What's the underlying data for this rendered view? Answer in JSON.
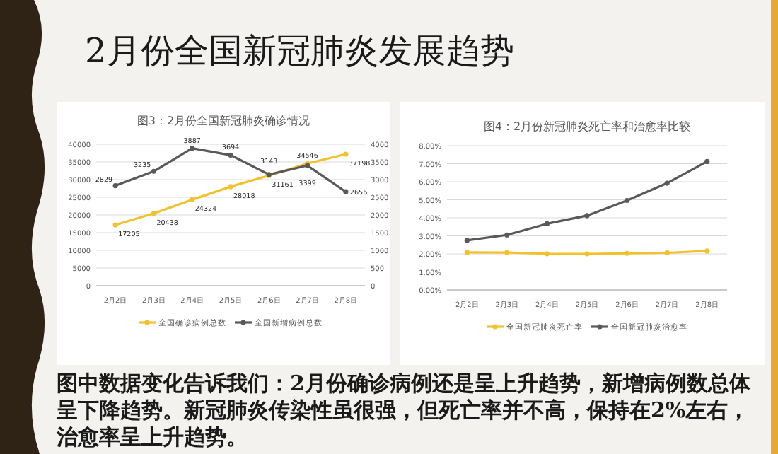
{
  "chart_data": [
    {
      "type": "other",
      "title": "2月份全国新冠肺炎发展趋势",
      "annotations": [
        "图中数据变化告诉我们：2月份确诊病例还是呈上升趋势，新增病例数总体呈下降趋势。新冠肺炎传染性虽很强，但死亡率并不高，保持在2%左右，治愈率呈上升趋势。"
      ]
    },
    {
      "type": "line",
      "title": "图3：2月份全国新冠肺炎确诊情况",
      "categories": [
        "2月2日",
        "2月3日",
        "2月4日",
        "2月5日",
        "2月6日",
        "2月7日",
        "2月8日"
      ],
      "series": [
        {
          "name": "全国确诊病例总数",
          "color": "#f2c12e",
          "values": [
            17205,
            20438,
            24324,
            28018,
            31161,
            34546,
            37198
          ]
        },
        {
          "name": "全国新增病例总数",
          "color": "#595959",
          "axis": "y2",
          "values": [
            2829,
            3235,
            3887,
            3694,
            3143,
            3399,
            2656
          ]
        }
      ],
      "ylim": [
        0,
        40000
      ],
      "yticks": [
        0,
        5000,
        10000,
        15000,
        20000,
        25000,
        30000,
        35000,
        40000
      ],
      "y2lim": [
        0,
        4000
      ],
      "y2ticks": [
        0,
        500,
        1000,
        1500,
        2000,
        2500,
        3000,
        3500,
        4000
      ],
      "grid": "y",
      "legend": "bottom",
      "marker": "circle",
      "data_labels": true
    },
    {
      "type": "line",
      "title": "图4：2月份新冠肺炎死亡率和治愈率比较",
      "categories": [
        "2月2日",
        "2月3日",
        "2月4日",
        "2月5日",
        "2月6日",
        "2月7日",
        "2月8日"
      ],
      "series": [
        {
          "name": "全国新冠肺炎死亡率",
          "color": "#f2c12e",
          "values": [
            2.08,
            2.07,
            2.01,
            2.0,
            2.03,
            2.06,
            2.16
          ]
        },
        {
          "name": "全国新冠肺炎治愈率",
          "color": "#595959",
          "values": [
            2.75,
            3.05,
            3.67,
            4.12,
            4.96,
            5.92,
            7.12
          ]
        }
      ],
      "ylim": [
        0,
        8
      ],
      "yticks": [
        {
          "value": 0,
          "label": "0.00%"
        },
        {
          "value": 1,
          "label": "1.00%"
        },
        {
          "value": 2,
          "label": "2.00%"
        },
        {
          "value": 3,
          "label": "3.00%"
        },
        {
          "value": 4,
          "label": "4.00%"
        },
        {
          "value": 5,
          "label": "5.00%"
        },
        {
          "value": 6,
          "label": "6.00%"
        },
        {
          "value": 7,
          "label": "7.00%"
        },
        {
          "value": 8,
          "label": "8.00%"
        }
      ],
      "grid": "y",
      "legend": "bottom",
      "marker": "circle"
    }
  ]
}
